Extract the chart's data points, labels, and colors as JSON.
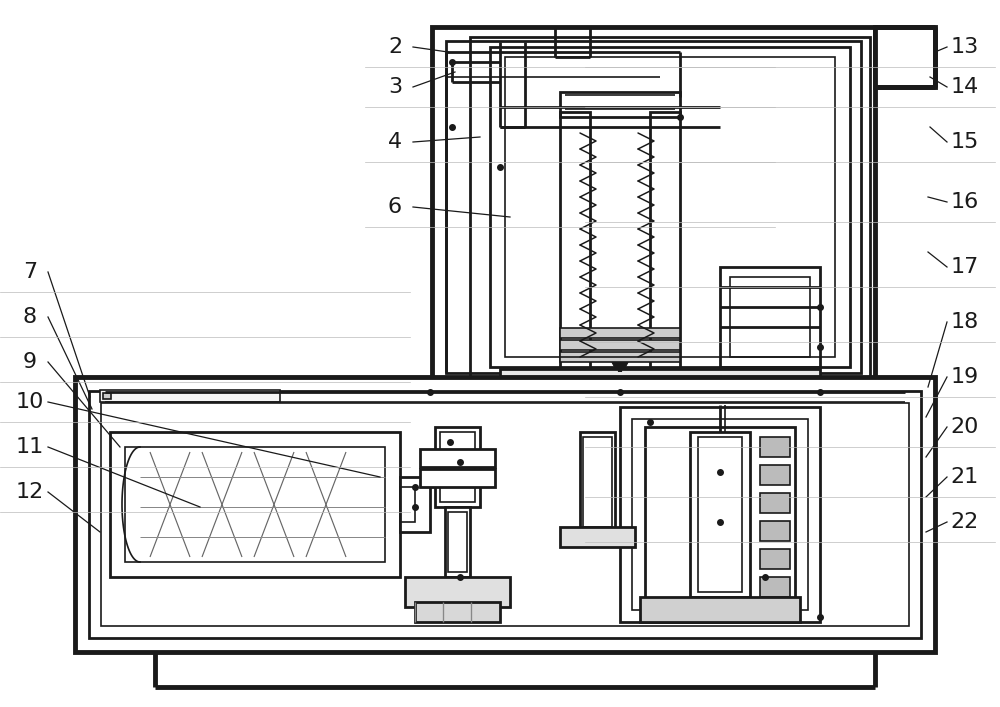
{
  "bg_color": "#ffffff",
  "lc": "#1a1a1a",
  "lw_thin": 1.2,
  "lw_med": 2.0,
  "lw_thick": 3.5,
  "fig_w": 10.0,
  "fig_h": 7.07,
  "dpi": 100
}
